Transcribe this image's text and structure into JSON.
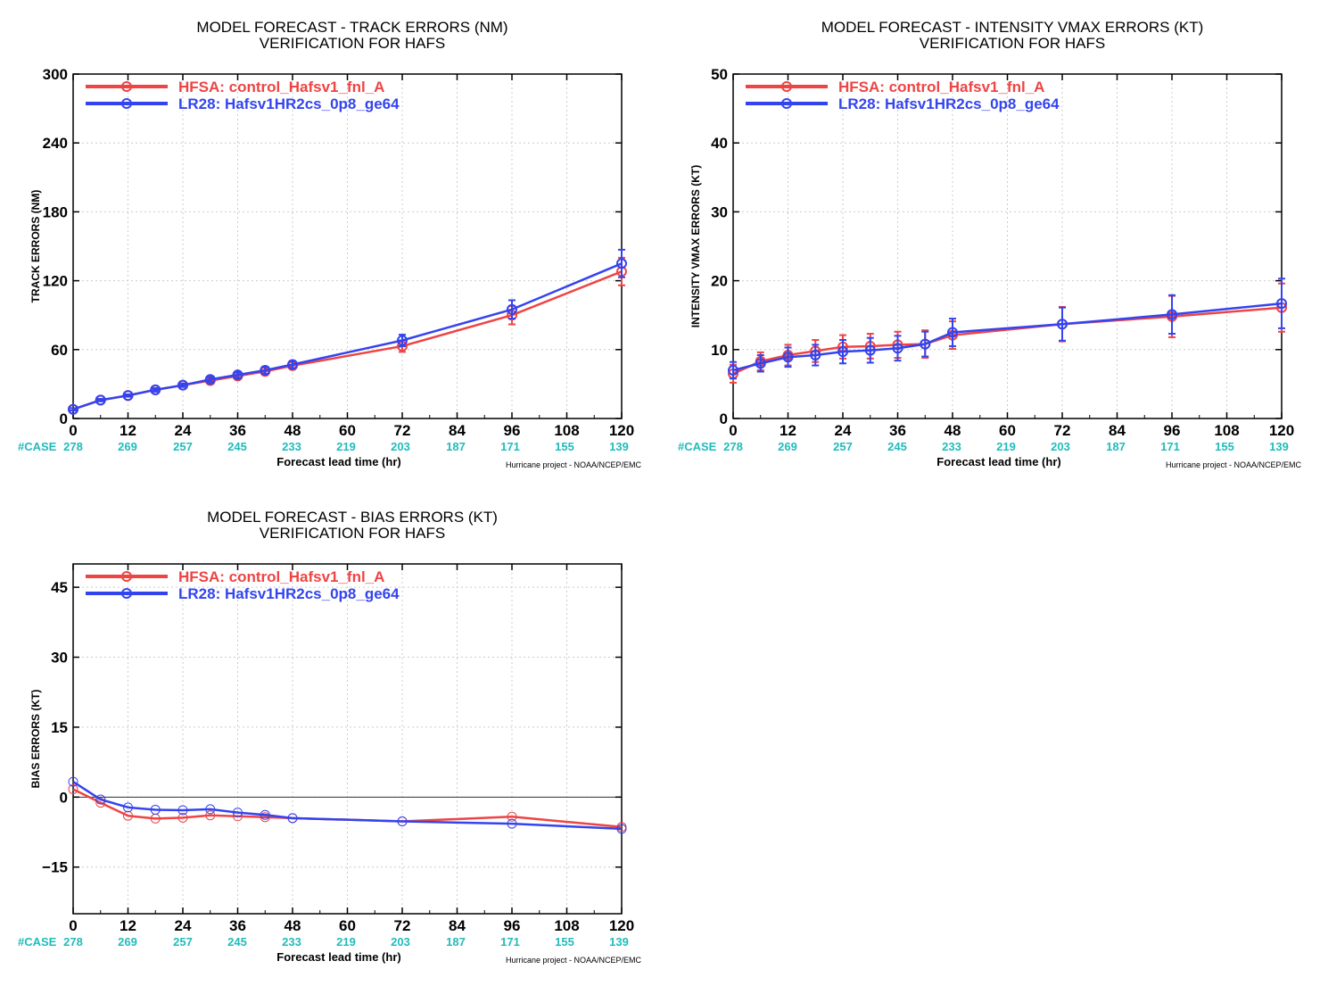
{
  "colors": {
    "hfsa": "#ee4444",
    "lr28": "#3344ee",
    "case": "#22bbbb",
    "axis": "#000000",
    "grid": "#cccccc"
  },
  "case_label": "#CASE",
  "xlabel": "Forecast lead time (hr)",
  "credit": "Hurricane project - NOAA/NCEP/EMC",
  "legend": [
    {
      "prefix": "HFSA:",
      "name": "control_Hafsv1_fnl_A",
      "color": "#ee4444"
    },
    {
      "prefix": "LR28:",
      "name": "Hafsv1HR2cs_0p8_ge64",
      "color": "#3344ee"
    }
  ],
  "chart_data": [
    {
      "id": "track",
      "type": "line",
      "title": "MODEL FORECAST - TRACK ERRORS (NM)",
      "subtitle": "VERIFICATION FOR HAFS",
      "xlabel": "Forecast lead time (hr)",
      "ylabel": "TRACK ERRORS (NM)",
      "xlim": [
        0,
        120
      ],
      "ylim": [
        0,
        300
      ],
      "xticks": [
        "0",
        "12",
        "24",
        "36",
        "48",
        "60",
        "72",
        "84",
        "96",
        "108",
        "120"
      ],
      "yticks": [
        "0",
        "60",
        "120",
        "180",
        "240",
        "300"
      ],
      "ytick_values": [
        0,
        60,
        120,
        180,
        240,
        300
      ],
      "grid": true,
      "legend_position": "top-left",
      "cases": [
        "278",
        "269",
        "257",
        "245",
        "233",
        "219",
        "203",
        "187",
        "171",
        "155",
        "139"
      ],
      "x": [
        0,
        6,
        12,
        18,
        24,
        30,
        36,
        42,
        48,
        72,
        96,
        120
      ],
      "series": [
        {
          "name": "HFSA: control_Hafsv1_fnl_A",
          "values": [
            8,
            16,
            20,
            25,
            29,
            33,
            37,
            41,
            46,
            63,
            90,
            128
          ],
          "err": [
            1,
            1,
            1,
            1.5,
            1.5,
            2,
            2.5,
            3,
            3,
            5,
            8,
            12
          ]
        },
        {
          "name": "LR28: Hafsv1HR2cs_0p8_ge64",
          "values": [
            8,
            16,
            20,
            25,
            29,
            34,
            38,
            42,
            47,
            68,
            95,
            135
          ],
          "err": [
            1,
            1,
            1,
            1.5,
            1.5,
            2,
            2.5,
            3,
            3,
            5,
            8,
            12
          ]
        }
      ]
    },
    {
      "id": "vmax",
      "type": "line",
      "title": "MODEL FORECAST - INTENSITY VMAX ERRORS (KT)",
      "subtitle": "VERIFICATION FOR HAFS",
      "xlabel": "Forecast lead time (hr)",
      "ylabel": "INTENSITY VMAX ERRORS (KT)",
      "xlim": [
        0,
        120
      ],
      "ylim": [
        0,
        50
      ],
      "xticks": [
        "0",
        "12",
        "24",
        "36",
        "48",
        "60",
        "72",
        "84",
        "96",
        "108",
        "120"
      ],
      "yticks": [
        "0",
        "10",
        "20",
        "30",
        "40",
        "50"
      ],
      "ytick_values": [
        0,
        10,
        20,
        30,
        40,
        50
      ],
      "grid": true,
      "legend_position": "top-left",
      "cases": [
        "278",
        "269",
        "257",
        "245",
        "233",
        "219",
        "203",
        "187",
        "171",
        "155",
        "139"
      ],
      "x": [
        0,
        6,
        12,
        18,
        24,
        30,
        36,
        42,
        48,
        72,
        96,
        120
      ],
      "series": [
        {
          "name": "HFSA: control_Hafsv1_fnl_A",
          "values": [
            6.5,
            8.3,
            9.2,
            9.8,
            10.4,
            10.5,
            10.7,
            10.8,
            12.1,
            13.7,
            14.8,
            16.1
          ],
          "err": [
            1.3,
            1.3,
            1.5,
            1.6,
            1.7,
            1.8,
            1.9,
            2.0,
            2.0,
            2.5,
            3.0,
            3.5
          ]
        },
        {
          "name": "LR28: Hafsv1HR2cs_0p8_ge64",
          "values": [
            7.0,
            8.0,
            8.9,
            9.2,
            9.7,
            9.9,
            10.2,
            10.8,
            12.5,
            13.7,
            15.1,
            16.7
          ],
          "err": [
            1.2,
            1.2,
            1.4,
            1.5,
            1.7,
            1.8,
            1.8,
            1.8,
            2.0,
            2.4,
            2.8,
            3.6
          ]
        }
      ]
    },
    {
      "id": "bias",
      "type": "line",
      "title": "MODEL FORECAST - BIAS ERRORS (KT)",
      "subtitle": "VERIFICATION FOR HAFS",
      "xlabel": "Forecast lead time (hr)",
      "ylabel": "BIAS ERRORS (KT)",
      "xlim": [
        0,
        120
      ],
      "ylim": [
        -25,
        50
      ],
      "xticks": [
        "0",
        "12",
        "24",
        "36",
        "48",
        "60",
        "72",
        "84",
        "96",
        "108",
        "120"
      ],
      "yticks": [
        "-15",
        "0",
        "15",
        "30",
        "45"
      ],
      "ytick_values": [
        -15,
        0,
        15,
        30,
        45
      ],
      "grid": true,
      "zero_line": true,
      "legend_position": "top-left",
      "cases": [
        "278",
        "269",
        "257",
        "245",
        "233",
        "219",
        "203",
        "187",
        "171",
        "155",
        "139"
      ],
      "x": [
        0,
        6,
        12,
        18,
        24,
        30,
        36,
        42,
        48,
        72,
        96,
        120
      ],
      "series": [
        {
          "name": "HFSA: control_Hafsv1_fnl_A",
          "values": [
            1.7,
            -1.2,
            -4.0,
            -4.6,
            -4.4,
            -3.9,
            -4.1,
            -4.3,
            -4.5,
            -5.2,
            -4.2,
            -6.4
          ]
        },
        {
          "name": "LR28: Hafsv1HR2cs_0p8_ge64",
          "values": [
            3.3,
            -0.5,
            -2.2,
            -2.7,
            -2.8,
            -2.6,
            -3.3,
            -3.8,
            -4.5,
            -5.2,
            -5.7,
            -6.8
          ]
        }
      ]
    }
  ]
}
